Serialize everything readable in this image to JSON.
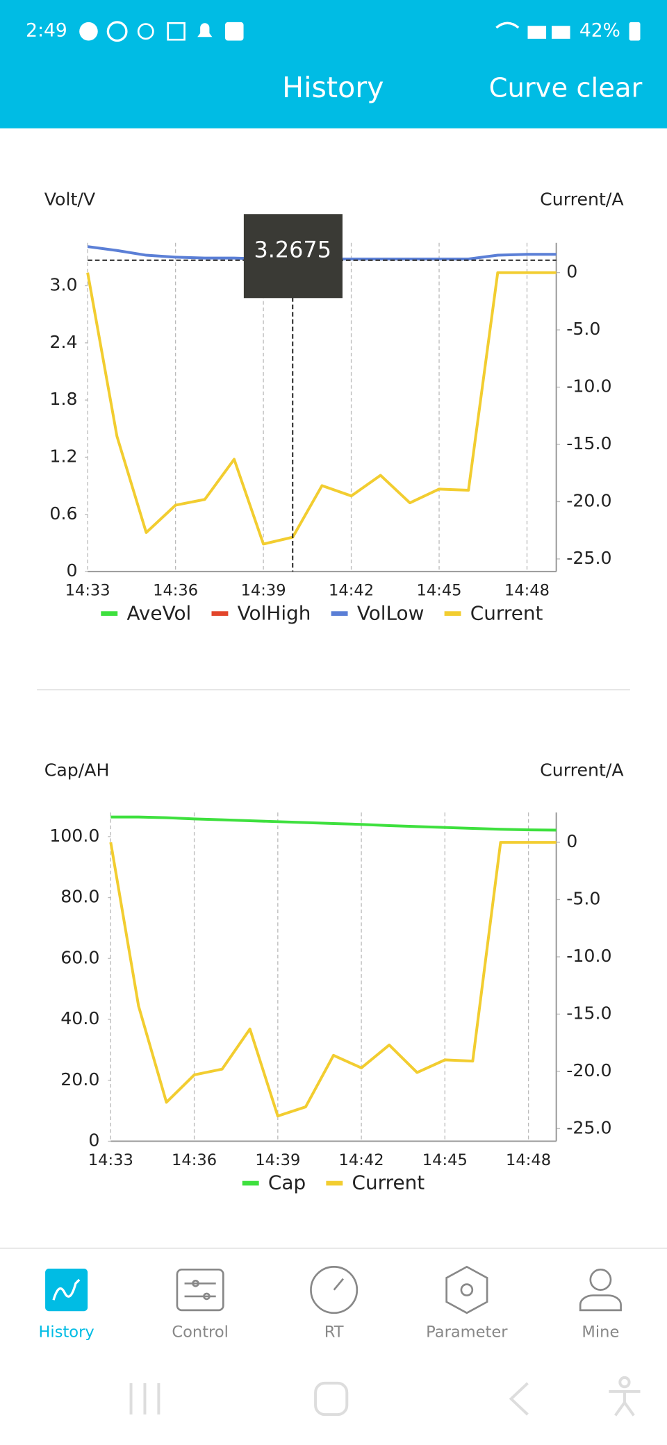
{
  "status_bar": {
    "time": "2:49",
    "battery": "42%"
  },
  "header": {
    "title": "History",
    "action": "Curve clear"
  },
  "chart_data": [
    {
      "type": "line",
      "y_label": "Volt/V",
      "y2_label": "Current/A",
      "categories": [
        "14:33",
        null,
        null,
        "14:36",
        null,
        null,
        "14:39",
        null,
        null,
        "14:42",
        null,
        null,
        "14:45",
        null,
        null,
        "14:48",
        null
      ],
      "series": [
        {
          "name": "AveVol",
          "color": "#3ee03e",
          "values": [
            null,
            null,
            null,
            null,
            null,
            null,
            null,
            null,
            null,
            null,
            null,
            null,
            null,
            null,
            null,
            null,
            null
          ]
        },
        {
          "name": "VolHigh",
          "color": "#e2462c",
          "values": [
            null,
            null,
            null,
            null,
            null,
            null,
            null,
            null,
            null,
            null,
            null,
            null,
            null,
            null,
            null,
            null,
            null
          ]
        },
        {
          "name": "VolLow",
          "color": "#5b7fd6",
          "values": [
            3.41,
            3.37,
            3.32,
            3.3,
            3.29,
            3.29,
            3.28,
            3.2675,
            3.28,
            3.28,
            3.28,
            3.28,
            3.28,
            3.28,
            3.32,
            3.33,
            3.33
          ],
          "value_labels": [
            null,
            null,
            null,
            null,
            null,
            null,
            null,
            "3.2675",
            null,
            null,
            null,
            null,
            null,
            null,
            null,
            null,
            null
          ]
        },
        {
          "name": "Current",
          "color": "#f2cd30",
          "axis": "y2",
          "values": [
            0,
            -14.3,
            -22.7,
            -20.3,
            -19.8,
            -16.3,
            -23.7,
            -23.1,
            -18.6,
            -19.5,
            -17.7,
            -20.1,
            -18.9,
            -19.0,
            0,
            0,
            0
          ]
        }
      ],
      "ylim": [
        0,
        3.45
      ],
      "yticks": [
        0,
        0.6,
        1.2,
        1.8,
        2.4,
        {
          "value": 3,
          "label": "3.0"
        }
      ],
      "y2lim": [
        -26.1,
        2.6
      ],
      "y2ticks": [
        {
          "value": -25,
          "label": "-25.0"
        },
        {
          "value": -20,
          "label": "-20.0"
        },
        {
          "value": -15,
          "label": "-15.0"
        },
        {
          "value": -10,
          "label": "-10.0"
        },
        {
          "value": -5,
          "label": "-5.0"
        },
        0
      ],
      "grid": true,
      "legend": "bottom"
    },
    {
      "type": "line",
      "y_label": "Cap/AH",
      "y2_label": "Current/A",
      "categories": [
        "14:33",
        null,
        null,
        "14:36",
        null,
        null,
        "14:39",
        null,
        null,
        "14:42",
        null,
        null,
        "14:45",
        null,
        null,
        "14:48",
        null
      ],
      "series": [
        {
          "name": "Cap",
          "color": "#3ee03e",
          "values": [
            106.4,
            106.4,
            106.2,
            105.8,
            105.5,
            105.2,
            104.9,
            104.6,
            104.3,
            104.0,
            103.6,
            103.3,
            103.0,
            102.7,
            102.4,
            102.2,
            102.1
          ]
        },
        {
          "name": "Current",
          "color": "#f2cd30",
          "axis": "y2",
          "values": [
            0,
            -14.3,
            -22.7,
            -20.3,
            -19.8,
            -16.3,
            -23.9,
            -23.1,
            -18.6,
            -19.7,
            -17.7,
            -20.1,
            -19.0,
            -19.1,
            0,
            0,
            0
          ]
        }
      ],
      "ylim": [
        0,
        107.9
      ],
      "yticks": [
        0,
        {
          "value": 20,
          "label": "20.0"
        },
        {
          "value": 40,
          "label": "40.0"
        },
        {
          "value": 60,
          "label": "60.0"
        },
        {
          "value": 80,
          "label": "80.0"
        },
        {
          "value": 100,
          "label": "100.0"
        }
      ],
      "y2lim": [
        -26.1,
        2.6
      ],
      "y2ticks": [
        {
          "value": -25,
          "label": "-25.0"
        },
        {
          "value": -20,
          "label": "-20.0"
        },
        {
          "value": -15,
          "label": "-15.0"
        },
        {
          "value": -10,
          "label": "-10.0"
        },
        {
          "value": -5,
          "label": "-5.0"
        },
        0
      ],
      "grid": true,
      "legend": "bottom"
    }
  ],
  "nav": {
    "items": [
      {
        "label": "History",
        "active": true
      },
      {
        "label": "Control",
        "active": false
      },
      {
        "label": "RT",
        "active": false
      },
      {
        "label": "Parameter",
        "active": false
      },
      {
        "label": "Mine",
        "active": false
      }
    ]
  }
}
